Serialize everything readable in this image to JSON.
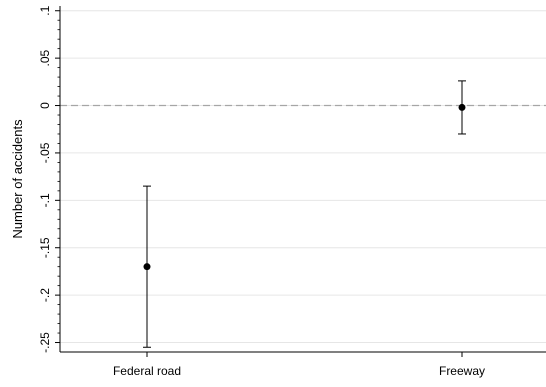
{
  "chart_data": {
    "type": "scatter",
    "subtype": "coefficient-plot-with-confidence-intervals",
    "title": "",
    "xlabel": "",
    "ylabel": "Number of accidents",
    "categories": [
      "Federal road",
      "Freeway"
    ],
    "points": [
      {
        "category": "Federal road",
        "estimate": -0.17,
        "ci_low": -0.255,
        "ci_high": -0.085
      },
      {
        "category": "Freeway",
        "estimate": -0.002,
        "ci_low": -0.03,
        "ci_high": 0.026
      }
    ],
    "yticks": [
      {
        "value": 0.1,
        "label": ".1"
      },
      {
        "value": 0.05,
        "label": ".05"
      },
      {
        "value": 0,
        "label": "0"
      },
      {
        "value": -0.05,
        "label": "-.05"
      },
      {
        "value": -0.1,
        "label": "-.1"
      },
      {
        "value": -0.15,
        "label": "-.15"
      },
      {
        "value": -0.2,
        "label": "-.2"
      },
      {
        "value": -0.25,
        "label": "-.25"
      }
    ],
    "ylim": [
      -0.26,
      0.105
    ],
    "reference_line": {
      "value": 0,
      "style": "dashed"
    },
    "grid": true,
    "colors": {
      "marker": "#000000",
      "grid": "#e6e6e6",
      "reference_line": "#a6a6a6",
      "axis": "#000000"
    }
  }
}
